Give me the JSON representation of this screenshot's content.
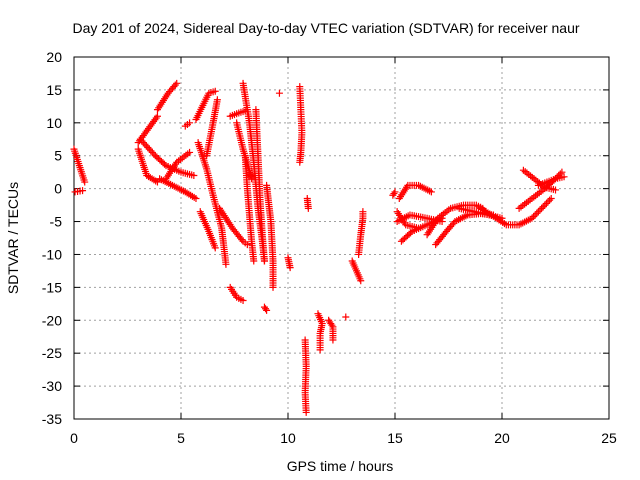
{
  "chart_data": {
    "type": "scatter",
    "title": "Day 201 of 2024, Sidereal Day-to-day VTEC variation (SDTVAR) for receiver naur",
    "xlabel": "GPS time / hours",
    "ylabel": "SDTVAR / TECUs",
    "xlim": [
      0,
      25
    ],
    "ylim": [
      -35,
      20
    ],
    "xticks": [
      "0",
      "5",
      "10",
      "15",
      "20",
      "25"
    ],
    "xtick_values": [
      0,
      5,
      10,
      15,
      20,
      25
    ],
    "yticks": [
      "20",
      "15",
      "10",
      "5",
      "0",
      "-5",
      "-10",
      "-15",
      "-20",
      "-25",
      "-30",
      "-35"
    ],
    "ytick_values": [
      20,
      15,
      10,
      5,
      0,
      -5,
      -10,
      -15,
      -20,
      -25,
      -30,
      -35
    ],
    "grid": true,
    "marker": "+",
    "color": "#ff0000",
    "tracks": [
      {
        "points": [
          [
            0.0,
            6.0
          ],
          [
            0.5,
            1.0
          ]
        ]
      },
      {
        "points": [
          [
            0.05,
            -0.5
          ],
          [
            0.4,
            -0.3
          ]
        ]
      },
      {
        "points": [
          [
            3.0,
            7.0
          ],
          [
            3.9,
            11.0
          ]
        ]
      },
      {
        "points": [
          [
            3.0,
            6.0
          ],
          [
            3.4,
            2.0
          ],
          [
            3.9,
            1.0
          ]
        ]
      },
      {
        "points": [
          [
            3.1,
            7.5
          ],
          [
            3.8,
            5.0
          ],
          [
            4.3,
            3.5
          ],
          [
            5.0,
            2.5
          ],
          [
            5.6,
            2.0
          ]
        ]
      },
      {
        "points": [
          [
            3.9,
            12.0
          ],
          [
            4.4,
            14.5
          ],
          [
            4.8,
            16.0
          ]
        ]
      },
      {
        "points": [
          [
            4.3,
            1.5
          ],
          [
            4.8,
            4.0
          ],
          [
            5.4,
            5.5
          ]
        ]
      },
      {
        "points": [
          [
            4.0,
            1.5
          ],
          [
            4.6,
            0.5
          ],
          [
            5.2,
            -0.5
          ],
          [
            5.7,
            -1.5
          ]
        ]
      },
      {
        "points": [
          [
            5.2,
            9.5
          ],
          [
            5.4,
            10.0
          ]
        ]
      },
      {
        "points": [
          [
            5.7,
            10.5
          ],
          [
            6.3,
            14.5
          ],
          [
            6.6,
            14.8
          ]
        ]
      },
      {
        "points": [
          [
            6.2,
            5.0
          ],
          [
            6.5,
            10.0
          ],
          [
            6.7,
            13.5
          ]
        ]
      },
      {
        "points": [
          [
            5.8,
            7.0
          ],
          [
            6.2,
            3.0
          ],
          [
            6.5,
            -1.0
          ],
          [
            6.9,
            -6.0
          ],
          [
            7.1,
            -11.5
          ]
        ]
      },
      {
        "points": [
          [
            5.9,
            -3.5
          ],
          [
            6.3,
            -6.5
          ],
          [
            6.6,
            -9.0
          ]
        ]
      },
      {
        "points": [
          [
            6.8,
            -3.0
          ],
          [
            7.4,
            -6.0
          ],
          [
            7.9,
            -8.0
          ],
          [
            8.1,
            -8.5
          ]
        ]
      },
      {
        "points": [
          [
            7.3,
            11.0
          ],
          [
            7.7,
            11.5
          ],
          [
            8.0,
            11.8
          ]
        ]
      },
      {
        "points": [
          [
            7.6,
            10.0
          ],
          [
            7.9,
            6.0
          ],
          [
            8.3,
            1.5
          ]
        ]
      },
      {
        "points": [
          [
            7.9,
            16.0
          ],
          [
            8.2,
            10.0
          ],
          [
            8.4,
            4.0
          ],
          [
            8.6,
            -3.0
          ],
          [
            8.8,
            -8.0
          ],
          [
            8.9,
            -11.0
          ]
        ]
      },
      {
        "points": [
          [
            8.0,
            5.0
          ],
          [
            8.1,
            0.0
          ],
          [
            8.2,
            -4.0
          ],
          [
            8.3,
            -8.0
          ],
          [
            8.4,
            -11.0
          ]
        ]
      },
      {
        "points": [
          [
            8.5,
            12.0
          ],
          [
            8.6,
            5.0
          ],
          [
            8.7,
            -2.0
          ],
          [
            8.8,
            -7.0
          ],
          [
            8.9,
            -11.0
          ]
        ]
      },
      {
        "points": [
          [
            7.3,
            -15.0
          ],
          [
            7.6,
            -16.5
          ],
          [
            7.9,
            -17.0
          ]
        ]
      },
      {
        "points": [
          [
            9.0,
            0.5
          ],
          [
            9.2,
            -5.0
          ],
          [
            9.3,
            -11.0
          ],
          [
            9.3,
            -15.0
          ]
        ]
      },
      {
        "points": [
          [
            8.9,
            -18.0
          ],
          [
            9.0,
            -18.5
          ]
        ]
      },
      {
        "points": [
          [
            9.6,
            14.5
          ]
        ]
      },
      {
        "points": [
          [
            10.0,
            -10.5
          ],
          [
            10.1,
            -12.0
          ]
        ]
      },
      {
        "points": [
          [
            10.55,
            15.5
          ],
          [
            10.6,
            12.0
          ],
          [
            10.65,
            8.5
          ],
          [
            10.6,
            5.5
          ],
          [
            10.55,
            4.0
          ]
        ]
      },
      {
        "points": [
          [
            10.9,
            -1.5
          ],
          [
            10.95,
            -3.0
          ]
        ]
      },
      {
        "points": [
          [
            10.8,
            -23.0
          ],
          [
            10.85,
            -27.0
          ],
          [
            10.8,
            -31.0
          ],
          [
            10.85,
            -34.0
          ]
        ]
      },
      {
        "points": [
          [
            11.4,
            -19.0
          ],
          [
            11.6,
            -20.5
          ],
          [
            11.5,
            -22.0
          ],
          [
            11.5,
            -24.5
          ]
        ]
      },
      {
        "points": [
          [
            11.9,
            -20.0
          ],
          [
            12.1,
            -21.0
          ],
          [
            12.1,
            -23.0
          ]
        ]
      },
      {
        "points": [
          [
            12.7,
            -19.5
          ]
        ]
      },
      {
        "points": [
          [
            13.0,
            -11.0
          ],
          [
            13.2,
            -12.5
          ],
          [
            13.4,
            -14.0
          ]
        ]
      },
      {
        "points": [
          [
            13.3,
            -10.0
          ],
          [
            13.4,
            -7.0
          ],
          [
            13.5,
            -4.5
          ],
          [
            13.5,
            -3.5
          ]
        ]
      },
      {
        "points": [
          [
            14.9,
            -1.0
          ],
          [
            15.0,
            -0.5
          ]
        ]
      },
      {
        "points": [
          [
            15.2,
            -1.5
          ],
          [
            15.6,
            0.5
          ],
          [
            16.1,
            0.5
          ],
          [
            16.7,
            -0.5
          ]
        ]
      },
      {
        "points": [
          [
            15.1,
            -3.5
          ],
          [
            15.5,
            -5.5
          ],
          [
            16.1,
            -6.0
          ]
        ]
      },
      {
        "points": [
          [
            15.3,
            -8.0
          ],
          [
            15.8,
            -6.5
          ],
          [
            16.5,
            -5.5
          ],
          [
            17.2,
            -4.5
          ]
        ]
      },
      {
        "points": [
          [
            15.1,
            -5.0
          ],
          [
            15.7,
            -4.0
          ],
          [
            16.5,
            -4.5
          ],
          [
            17.2,
            -5.0
          ]
        ]
      },
      {
        "points": [
          [
            16.5,
            -7.0
          ],
          [
            17.0,
            -4.5
          ],
          [
            17.6,
            -3.0
          ],
          [
            18.2,
            -2.5
          ],
          [
            18.8,
            -2.5
          ],
          [
            19.1,
            -3.0
          ]
        ]
      },
      {
        "points": [
          [
            16.9,
            -8.5
          ],
          [
            17.4,
            -6.5
          ],
          [
            17.8,
            -5.0
          ],
          [
            18.4,
            -4.0
          ],
          [
            19.0,
            -3.8
          ],
          [
            19.6,
            -4.0
          ]
        ]
      },
      {
        "points": [
          [
            18.0,
            -3.0
          ],
          [
            18.7,
            -3.5
          ],
          [
            19.4,
            -4.0
          ],
          [
            20.0,
            -4.5
          ]
        ]
      },
      {
        "points": [
          [
            19.0,
            -3.0
          ],
          [
            19.6,
            -4.2
          ],
          [
            20.2,
            -5.5
          ],
          [
            20.8,
            -5.5
          ],
          [
            21.4,
            -4.5
          ],
          [
            22.0,
            -2.5
          ],
          [
            22.3,
            -1.5
          ]
        ]
      },
      {
        "points": [
          [
            20.8,
            -3.0
          ],
          [
            21.4,
            -1.5
          ],
          [
            22.0,
            0.0
          ],
          [
            22.5,
            1.5
          ],
          [
            22.8,
            2.5
          ]
        ]
      },
      {
        "points": [
          [
            21.0,
            2.8
          ],
          [
            21.5,
            1.5
          ],
          [
            22.0,
            0.2
          ],
          [
            22.5,
            -0.2
          ]
        ]
      },
      {
        "points": [
          [
            21.7,
            0.5
          ],
          [
            22.1,
            1.0
          ],
          [
            22.5,
            1.5
          ],
          [
            22.9,
            1.8
          ]
        ]
      }
    ]
  }
}
